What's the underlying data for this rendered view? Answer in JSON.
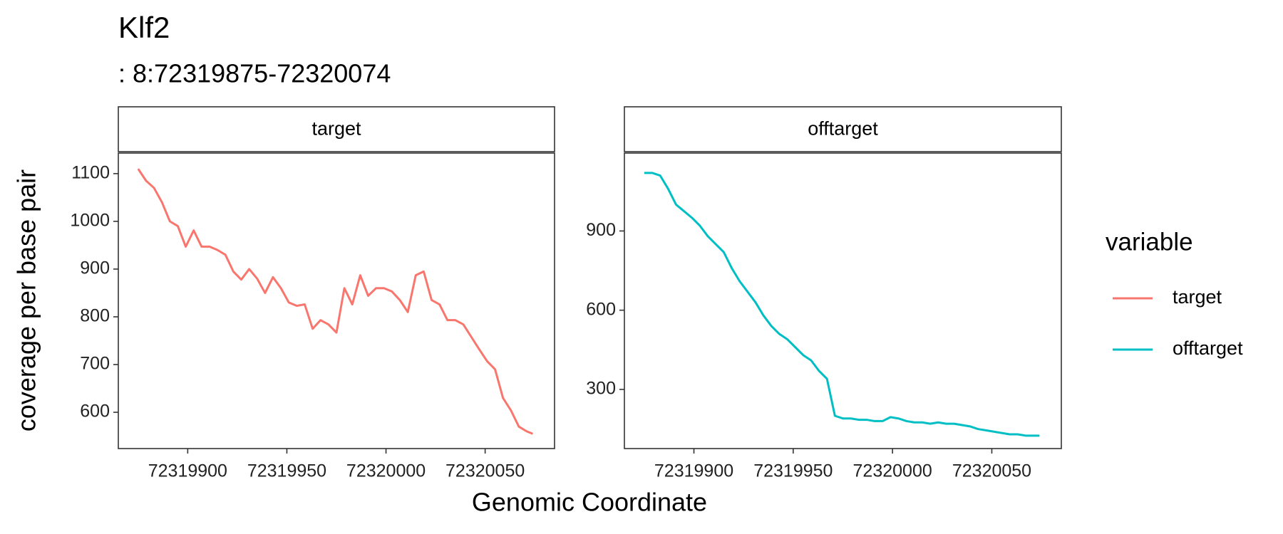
{
  "chart_data": {
    "type": "line",
    "title": "Klf2",
    "subtitle": ": 8:72319875-72320074",
    "x_label": "Genomic Coordinate",
    "y_label": "coverage per base pair",
    "legend_title": "variable",
    "facet_by_series": true,
    "grid": false,
    "xlim": [
      72319865,
      72320085
    ],
    "xticks": [
      72319900,
      72319950,
      72320000,
      72320050
    ],
    "x": [
      72319875,
      72319879,
      72319883,
      72319887,
      72319891,
      72319895,
      72319899,
      72319903,
      72319907,
      72319911,
      72319915,
      72319919,
      72319923,
      72319927,
      72319931,
      72319935,
      72319939,
      72319943,
      72319947,
      72319951,
      72319955,
      72319959,
      72319963,
      72319967,
      72319971,
      72319975,
      72319979,
      72319983,
      72319987,
      72319991,
      72319995,
      72319999,
      72320003,
      72320007,
      72320011,
      72320015,
      72320019,
      72320023,
      72320027,
      72320031,
      72320035,
      72320039,
      72320043,
      72320047,
      72320051,
      72320055,
      72320059,
      72320063,
      72320067,
      72320071,
      72320074
    ],
    "series": [
      {
        "name": "target",
        "color": "#f8766d",
        "ylim": [
          524,
          1143
        ],
        "yticks": [
          600,
          700,
          800,
          900,
          1000,
          1100
        ],
        "values": [
          1110,
          1085,
          1070,
          1040,
          1000,
          990,
          947,
          981,
          947,
          947,
          940,
          930,
          895,
          878,
          900,
          880,
          850,
          883,
          860,
          830,
          823,
          826,
          775,
          793,
          784,
          767,
          860,
          826,
          887,
          844,
          860,
          860,
          853,
          835,
          810,
          887,
          895,
          835,
          826,
          793,
          793,
          784,
          758,
          732,
          707,
          690,
          630,
          604,
          570,
          560,
          555
        ]
      },
      {
        "name": "offtarget",
        "color": "#00bfc4",
        "ylim": [
          76,
          1195
        ],
        "yticks": [
          300,
          600,
          900
        ],
        "values": [
          1120,
          1120,
          1110,
          1060,
          1000,
          975,
          950,
          920,
          880,
          850,
          820,
          760,
          710,
          670,
          630,
          580,
          540,
          510,
          490,
          460,
          430,
          410,
          370,
          340,
          200,
          190,
          190,
          185,
          185,
          180,
          180,
          195,
          190,
          180,
          175,
          175,
          170,
          175,
          170,
          170,
          165,
          160,
          150,
          145,
          140,
          135,
          130,
          130,
          125,
          125,
          125
        ]
      }
    ]
  }
}
